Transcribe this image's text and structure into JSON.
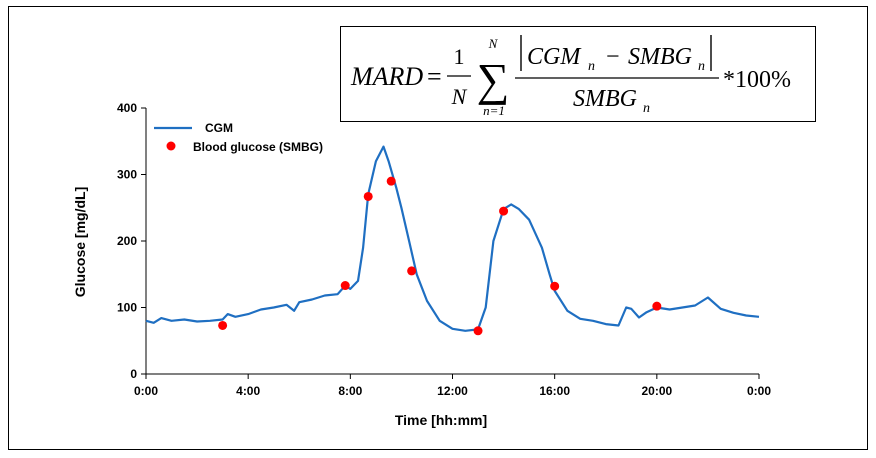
{
  "formula": {
    "lhs": "MARD",
    "equals": "=",
    "one": "1",
    "n_cap": "N",
    "sum_top": "N",
    "sum_bottom": "n=1",
    "numerator_a": "CGM",
    "numerator_sub_a": "n",
    "minus": "−",
    "numerator_b": "SMBG",
    "numerator_sub_b": "n",
    "denominator": "SMBG",
    "denominator_sub": "n",
    "times": "*100%"
  },
  "chart_data": {
    "type": "line",
    "xlabel": "Time [hh:mm]",
    "ylabel": "Glucose [mg/dL]",
    "x_unit": "hours",
    "xlim": [
      0,
      24
    ],
    "ylim": [
      0,
      400
    ],
    "x_tick_values": [
      0,
      4,
      8,
      12,
      16,
      20,
      24
    ],
    "x_tick_labels": [
      "0:00",
      "4:00",
      "8:00",
      "12:00",
      "16:00",
      "20:00",
      "0:00"
    ],
    "y_ticks": [
      0,
      100,
      200,
      300,
      400
    ],
    "grid": false,
    "legend_position": "top-left",
    "series": [
      {
        "name": "CGM",
        "kind": "line",
        "color": "#1f6fc2",
        "points": [
          [
            0,
            80
          ],
          [
            0.3,
            77
          ],
          [
            0.6,
            84
          ],
          [
            1.0,
            80
          ],
          [
            1.5,
            82
          ],
          [
            2.0,
            79
          ],
          [
            2.5,
            80
          ],
          [
            3.0,
            82
          ],
          [
            3.2,
            90
          ],
          [
            3.5,
            86
          ],
          [
            4.0,
            90
          ],
          [
            4.5,
            97
          ],
          [
            5.0,
            100
          ],
          [
            5.5,
            104
          ],
          [
            5.8,
            95
          ],
          [
            6.0,
            108
          ],
          [
            6.5,
            112
          ],
          [
            7.0,
            118
          ],
          [
            7.5,
            120
          ],
          [
            7.8,
            133
          ],
          [
            8.0,
            128
          ],
          [
            8.3,
            140
          ],
          [
            8.5,
            190
          ],
          [
            8.7,
            270
          ],
          [
            9.0,
            320
          ],
          [
            9.3,
            342
          ],
          [
            9.5,
            320
          ],
          [
            9.8,
            280
          ],
          [
            10.0,
            250
          ],
          [
            10.3,
            200
          ],
          [
            10.6,
            150
          ],
          [
            11.0,
            110
          ],
          [
            11.5,
            80
          ],
          [
            12.0,
            68
          ],
          [
            12.5,
            65
          ],
          [
            13.0,
            67
          ],
          [
            13.3,
            100
          ],
          [
            13.6,
            200
          ],
          [
            14.0,
            248
          ],
          [
            14.3,
            255
          ],
          [
            14.6,
            248
          ],
          [
            15.0,
            232
          ],
          [
            15.5,
            190
          ],
          [
            15.8,
            150
          ],
          [
            16.0,
            125
          ],
          [
            16.5,
            95
          ],
          [
            17.0,
            83
          ],
          [
            17.5,
            80
          ],
          [
            18.0,
            75
          ],
          [
            18.5,
            73
          ],
          [
            18.8,
            100
          ],
          [
            19.0,
            98
          ],
          [
            19.3,
            85
          ],
          [
            19.6,
            93
          ],
          [
            20.0,
            100
          ],
          [
            20.5,
            97
          ],
          [
            21.0,
            100
          ],
          [
            21.5,
            103
          ],
          [
            22.0,
            115
          ],
          [
            22.5,
            98
          ],
          [
            23.0,
            92
          ],
          [
            23.5,
            88
          ],
          [
            24.0,
            86
          ]
        ]
      },
      {
        "name": "Blood glucose (SMBG)",
        "kind": "scatter",
        "color": "#ff0000",
        "points": [
          [
            3.0,
            73
          ],
          [
            7.8,
            133
          ],
          [
            8.7,
            267
          ],
          [
            9.6,
            290
          ],
          [
            10.4,
            155
          ],
          [
            13.0,
            65
          ],
          [
            14.0,
            245
          ],
          [
            16.0,
            132
          ],
          [
            20.0,
            102
          ]
        ]
      }
    ]
  }
}
